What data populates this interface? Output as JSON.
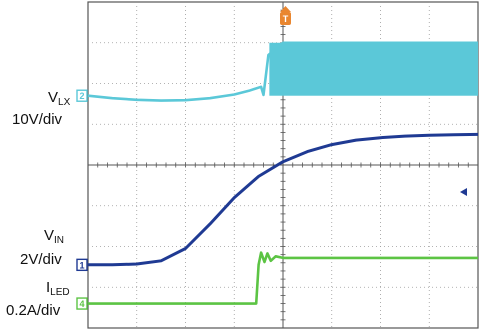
{
  "chart_data": {
    "type": "line",
    "title": "",
    "xlabel": "",
    "ylabel": "",
    "trigger_marker": "T",
    "grid": true,
    "grid_divisions": {
      "x": 8,
      "y": 8
    },
    "x_range_div": [
      0,
      8
    ],
    "channels": [
      {
        "id": "2",
        "name_main": "V",
        "name_sub": "LX",
        "scale": "10V/div",
        "color": "#5bc8d8",
        "style": "line+band",
        "x": [
          0,
          0.5,
          1.0,
          1.5,
          2.0,
          2.5,
          3.0,
          3.3,
          3.55,
          3.6,
          3.7,
          4.0,
          5.0,
          6.0,
          7.0,
          8.0
        ],
        "y": [
          5.7,
          5.64,
          5.6,
          5.58,
          5.59,
          5.64,
          5.73,
          5.82,
          5.92,
          5.72,
          6.7,
          7.0,
          7.0,
          7.0,
          7.0,
          7.0
        ],
        "band_x": [
          3.72,
          8.0
        ],
        "band_y": [
          5.7,
          7.0
        ]
      },
      {
        "id": "1",
        "name_main": "V",
        "name_sub": "IN",
        "scale": "2V/div",
        "color": "#1f3a93",
        "style": "line",
        "x": [
          0,
          0.5,
          1.0,
          1.5,
          2.0,
          2.5,
          3.0,
          3.5,
          4.0,
          4.5,
          5.0,
          5.5,
          6.0,
          6.5,
          7.0,
          7.5,
          8.0
        ],
        "y": [
          1.55,
          1.55,
          1.57,
          1.65,
          1.95,
          2.55,
          3.2,
          3.72,
          4.08,
          4.33,
          4.5,
          4.61,
          4.67,
          4.71,
          4.73,
          4.74,
          4.75
        ]
      },
      {
        "id": "4",
        "name_main": "I",
        "name_sub": "LED",
        "scale": "0.2A/div",
        "color": "#5cc444",
        "style": "line",
        "x": [
          0,
          1.0,
          2.0,
          3.0,
          3.45,
          3.5,
          3.55,
          3.62,
          3.68,
          3.75,
          3.85,
          4.0,
          5.0,
          6.0,
          7.0,
          8.0
        ],
        "y": [
          0.6,
          0.6,
          0.6,
          0.6,
          0.6,
          1.55,
          1.85,
          1.62,
          1.83,
          1.65,
          1.76,
          1.72,
          1.72,
          1.72,
          1.72,
          1.72
        ]
      }
    ]
  }
}
